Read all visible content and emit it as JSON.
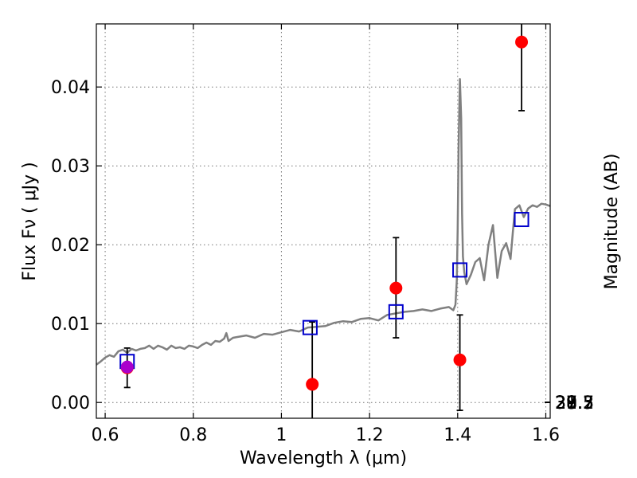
{
  "chart_data": {
    "type": "scatter",
    "xlabel": "Wavelength  λ (μm)",
    "ylabel": "Flux  Fν  ( μJy )",
    "ylabel_right": "Magnitude (AB)",
    "xlim": [
      0.58,
      1.61
    ],
    "ylim": [
      -0.002,
      0.048
    ],
    "grid": true,
    "x_ticks": [
      {
        "value": 0.6,
        "label": "0.6"
      },
      {
        "value": 0.8,
        "label": "0.8"
      },
      {
        "value": 1.0,
        "label": "1"
      },
      {
        "value": 1.2,
        "label": "1.2"
      },
      {
        "value": 1.4,
        "label": "1.4"
      },
      {
        "value": 1.6,
        "label": "1.6"
      }
    ],
    "y_ticks": [
      {
        "value": 0.0,
        "label": "0.00"
      },
      {
        "value": 0.01,
        "label": "0.01"
      },
      {
        "value": 0.02,
        "label": "0.02"
      },
      {
        "value": 0.03,
        "label": "0.03"
      },
      {
        "value": 0.04,
        "label": "0.04"
      }
    ],
    "mag_ticks": [
      {
        "value": 27.3,
        "label": "27.3"
      },
      {
        "value": 27.5,
        "label": "27.5"
      },
      {
        "value": 27.7,
        "label": "27.7"
      },
      {
        "value": 28.0,
        "label": "28"
      },
      {
        "value": 28.2,
        "label": "28.2"
      },
      {
        "value": 28.5,
        "label": "28.5"
      },
      {
        "value": 29.0,
        "label": "29"
      },
      {
        "value": 29.5,
        "label": "29.5"
      },
      {
        "value": 30.0,
        "label": "30"
      },
      {
        "value": 31.0,
        "label": "31"
      }
    ],
    "series": [
      {
        "kind": "template-spectrum",
        "color": "#808080",
        "x": [
          0.58,
          0.59,
          0.6,
          0.61,
          0.62,
          0.63,
          0.64,
          0.65,
          0.66,
          0.67,
          0.68,
          0.69,
          0.7,
          0.71,
          0.72,
          0.73,
          0.74,
          0.75,
          0.76,
          0.77,
          0.78,
          0.79,
          0.8,
          0.81,
          0.82,
          0.83,
          0.84,
          0.85,
          0.86,
          0.87,
          0.875,
          0.88,
          0.89,
          0.9,
          0.92,
          0.94,
          0.96,
          0.98,
          1.0,
          1.02,
          1.04,
          1.06,
          1.08,
          1.1,
          1.12,
          1.14,
          1.16,
          1.18,
          1.2,
          1.22,
          1.24,
          1.26,
          1.28,
          1.3,
          1.32,
          1.34,
          1.36,
          1.38,
          1.39,
          1.395,
          1.398,
          1.4,
          1.402,
          1.405,
          1.408,
          1.41,
          1.412,
          1.415,
          1.42,
          1.43,
          1.44,
          1.45,
          1.46,
          1.47,
          1.48,
          1.49,
          1.5,
          1.51,
          1.52,
          1.525,
          1.53,
          1.54,
          1.55,
          1.56,
          1.57,
          1.58,
          1.59,
          1.6,
          1.61
        ],
        "values": [
          0.0048,
          0.0052,
          0.0057,
          0.006,
          0.0058,
          0.0065,
          0.0067,
          0.0063,
          0.0068,
          0.0066,
          0.0068,
          0.0069,
          0.0072,
          0.0068,
          0.0072,
          0.007,
          0.0067,
          0.0072,
          0.0069,
          0.007,
          0.0068,
          0.0072,
          0.0071,
          0.0069,
          0.0073,
          0.0076,
          0.0073,
          0.0078,
          0.0077,
          0.0081,
          0.0088,
          0.0078,
          0.0082,
          0.0083,
          0.0085,
          0.0082,
          0.0087,
          0.0086,
          0.0089,
          0.0092,
          0.009,
          0.0095,
          0.0096,
          0.0097,
          0.0101,
          0.0103,
          0.0102,
          0.0106,
          0.0107,
          0.0104,
          0.0111,
          0.0113,
          0.0115,
          0.0116,
          0.0118,
          0.0116,
          0.0119,
          0.0121,
          0.0117,
          0.0124,
          0.0155,
          0.022,
          0.032,
          0.041,
          0.036,
          0.024,
          0.0185,
          0.0165,
          0.015,
          0.0162,
          0.0178,
          0.0183,
          0.0155,
          0.02,
          0.0225,
          0.0158,
          0.0192,
          0.0202,
          0.0182,
          0.0215,
          0.0245,
          0.025,
          0.0235,
          0.0246,
          0.025,
          0.0248,
          0.0252,
          0.0251,
          0.0249
        ]
      },
      {
        "kind": "model-photometry",
        "marker": "open-square",
        "color": "#0000cc",
        "x": [
          0.65,
          1.065,
          1.26,
          1.405,
          1.545
        ],
        "values": [
          0.0052,
          0.0095,
          0.0115,
          0.0168,
          0.0232
        ]
      },
      {
        "kind": "observed-photometry",
        "marker": "filled-circle",
        "color": "#ff0000",
        "x": [
          0.65,
          1.07,
          1.26,
          1.405,
          1.545
        ],
        "values": [
          0.0044,
          0.0023,
          0.0145,
          0.0054,
          0.0457
        ],
        "err_low": [
          0.0019,
          -0.003,
          0.0082,
          -0.001,
          0.037
        ],
        "err_high": [
          0.0069,
          0.0102,
          0.0209,
          0.0111,
          0.05
        ]
      },
      {
        "kind": "extra-point",
        "marker": "filled-circle",
        "color": "#aa00cc",
        "x": [
          0.65
        ],
        "values": [
          0.0045
        ]
      }
    ]
  }
}
